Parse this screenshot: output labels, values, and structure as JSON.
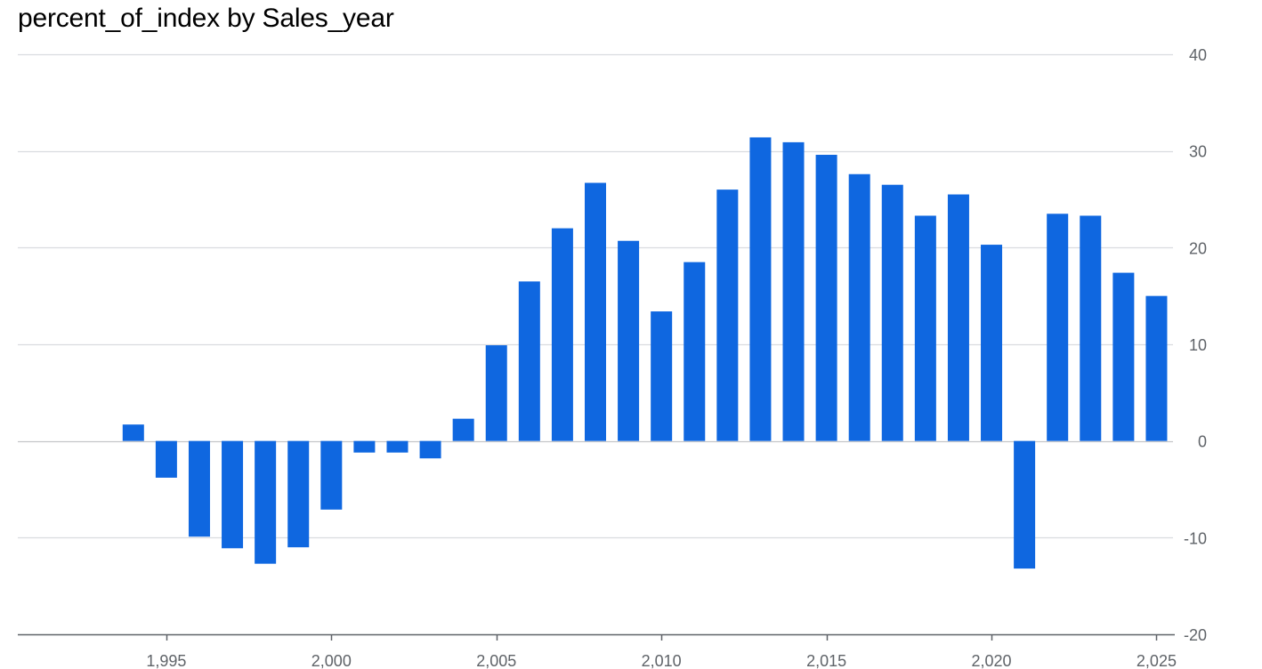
{
  "chart_data": {
    "type": "bar",
    "title": "percent_of_index by Sales_year",
    "xlabel": "",
    "ylabel": "",
    "x": [
      1994,
      1995,
      1996,
      1997,
      1998,
      1999,
      2000,
      2001,
      2002,
      2003,
      2004,
      2005,
      2006,
      2007,
      2008,
      2009,
      2010,
      2011,
      2012,
      2013,
      2014,
      2015,
      2016,
      2017,
      2018,
      2019,
      2020,
      2021,
      2022,
      2023,
      2024,
      2025
    ],
    "values": [
      1.7,
      -3.8,
      -9.9,
      -11.1,
      -12.7,
      -11.0,
      -7.1,
      -1.2,
      -1.2,
      -1.8,
      2.3,
      9.9,
      16.5,
      22.0,
      26.7,
      20.7,
      13.4,
      18.5,
      26.0,
      31.4,
      30.9,
      29.6,
      27.6,
      26.5,
      23.3,
      25.5,
      20.3,
      -13.2,
      23.5,
      23.3,
      17.4,
      15.0
    ],
    "xlim": [
      1990.5,
      2025.5
    ],
    "ylim": [
      -20,
      40
    ],
    "xticks": [
      1995,
      2000,
      2005,
      2010,
      2015,
      2020,
      2025
    ],
    "xtick_labels": [
      "1,995",
      "2,000",
      "2,005",
      "2,010",
      "2,015",
      "2,020",
      "2,025"
    ],
    "yticks": [
      40,
      30,
      20,
      10,
      0,
      -10,
      -20
    ],
    "ytick_labels": [
      "40",
      "30",
      "20",
      "10",
      "0",
      "-10",
      "-20"
    ],
    "y_axis_position": "right",
    "grid": true,
    "bar_color": "#0f67e0",
    "grid_color": "#dadce0",
    "zero_line_color": "#c4c6c9",
    "axis_color": "#5f6368"
  }
}
